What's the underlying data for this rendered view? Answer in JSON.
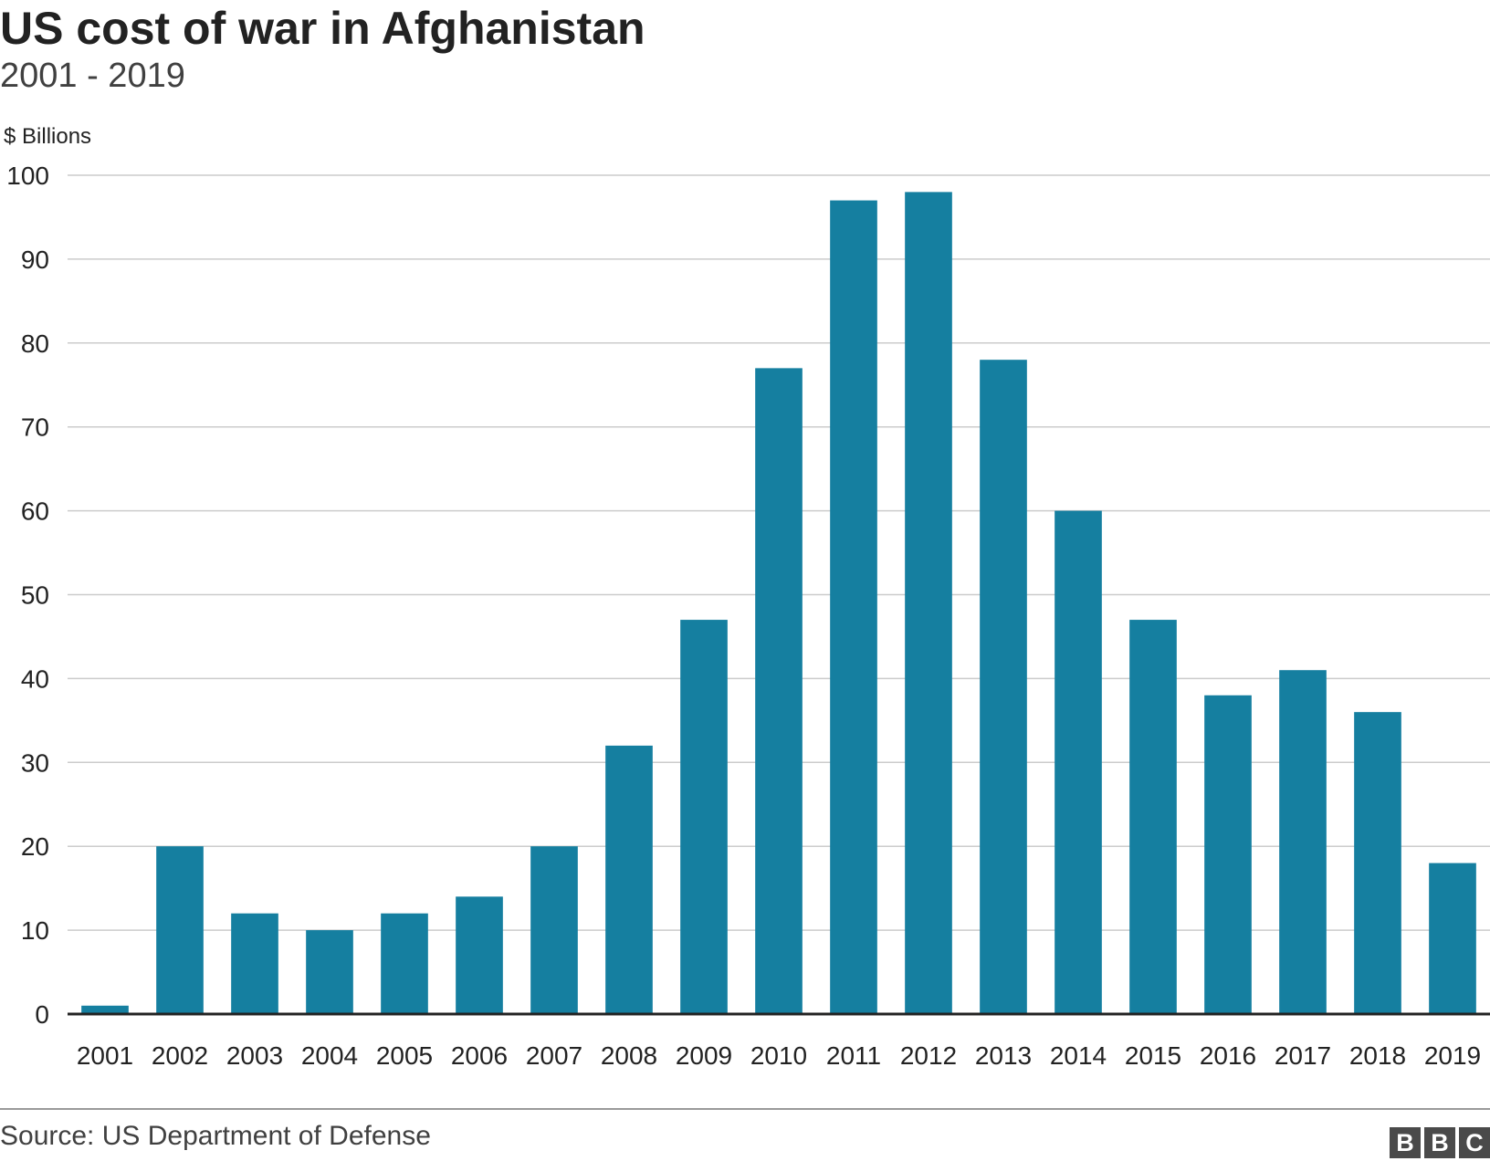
{
  "chart_data": {
    "type": "bar",
    "title": "US cost of war in Afghanistan",
    "subtitle": "2001 - 2019",
    "ylabel": "$ Billions",
    "xlabel": "",
    "categories": [
      "2001",
      "2002",
      "2003",
      "2004",
      "2005",
      "2006",
      "2007",
      "2008",
      "2009",
      "2010",
      "2011",
      "2012",
      "2013",
      "2014",
      "2015",
      "2016",
      "2017",
      "2018",
      "2019"
    ],
    "values": [
      1,
      20,
      12,
      10,
      12,
      14,
      20,
      32,
      47,
      77,
      97,
      98,
      78,
      60,
      47,
      38,
      41,
      36,
      18
    ],
    "ylim": [
      0,
      100
    ],
    "yticks": [
      0,
      10,
      20,
      30,
      40,
      50,
      60,
      70,
      80,
      90,
      100
    ],
    "grid": true,
    "bar_color": "#157fa0"
  },
  "footer": {
    "source": "Source: US Department of Defense",
    "logo_letters": [
      "B",
      "B",
      "C"
    ]
  }
}
